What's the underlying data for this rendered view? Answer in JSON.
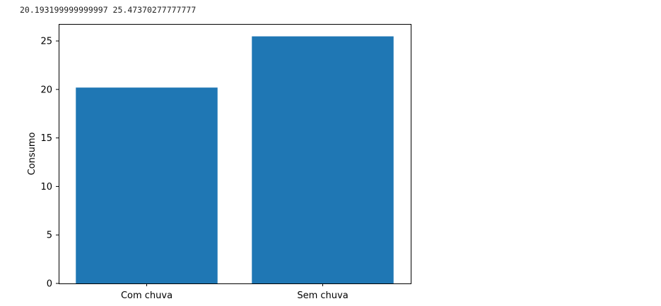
{
  "output_text": "20.193199999999997 25.47370277777777",
  "chart_data": {
    "type": "bar",
    "categories": [
      "Com chuva",
      "Sem chuva"
    ],
    "values": [
      20.1932,
      25.4737
    ],
    "title": "",
    "xlabel": "",
    "ylabel": "Consumo",
    "ylim": [
      0,
      26.75
    ],
    "yticks": [
      0,
      5,
      10,
      15,
      20,
      25
    ],
    "bar_color": "#1f77b4",
    "grid": false
  }
}
